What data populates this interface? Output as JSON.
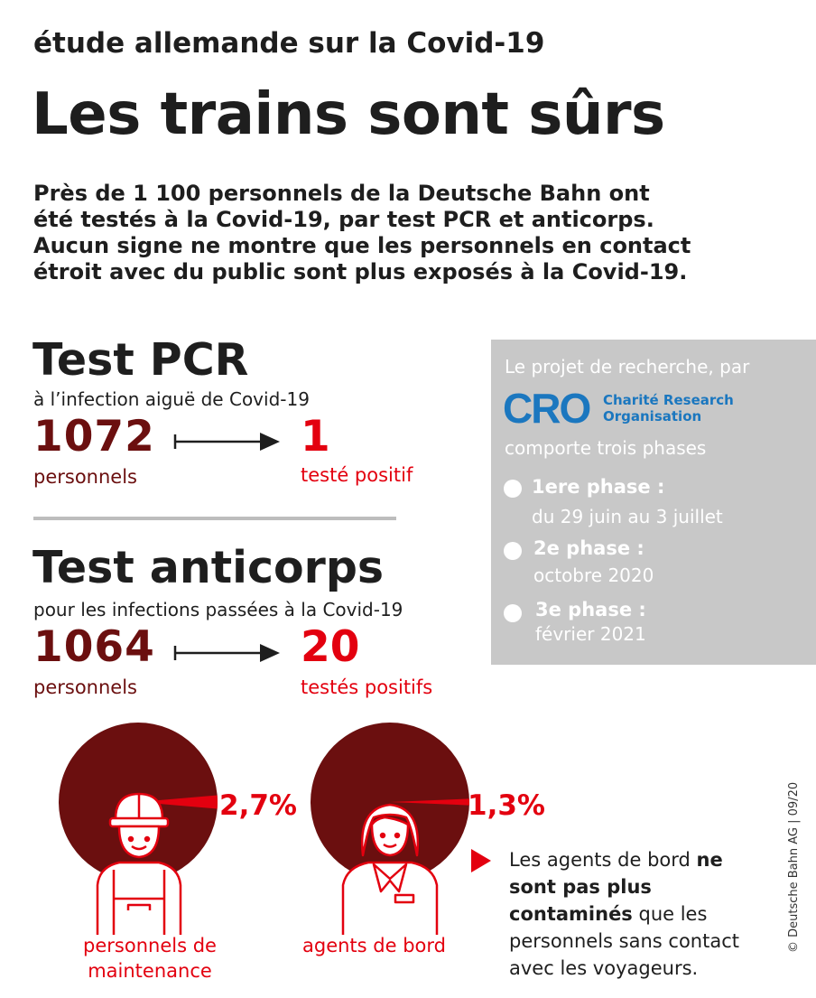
{
  "header": {
    "kicker": "étude allemande sur la Covid-19",
    "title": "Les trains sont sûrs"
  },
  "intro": {
    "lines": [
      "Près de 1 100 personnels de la Deutsche Bahn ont",
      "été testés à la Covid-19, par test PCR et anticorps.",
      "Aucun signe ne montre que les personnels en contact",
      "étroit avec du public sont plus exposés à la Covid-19."
    ]
  },
  "pcr": {
    "title": "Test PCR",
    "subtitle": "à l’infection aiguë de Covid-19",
    "count": "1072",
    "count_label": "personnels",
    "positive": "1",
    "positive_label": "testé positif"
  },
  "antibody": {
    "title": "Test anticorps",
    "subtitle": "pour les infections passées à la Covid-19",
    "count": "1064",
    "count_label": "personnels",
    "positive": "20",
    "positive_label": "testés positifs"
  },
  "research": {
    "intro": "Le projet de recherche, par",
    "logo_text": "CRO",
    "org_line1": "Charité Research",
    "org_line2": "Organisation",
    "phases_intro": "comporte trois phases",
    "phases": [
      {
        "name": "1ere phase :",
        "date": "du 29 juin au 3 juillet"
      },
      {
        "name": "2e phase :",
        "date": "octobre 2020"
      },
      {
        "name": "3e phase :",
        "date": "février 2021"
      }
    ]
  },
  "chart_data": {
    "type": "pie",
    "charts": [
      {
        "label": "personnels de maintenance",
        "percent_label": "2,7%",
        "value": 2.7
      },
      {
        "label": "agents de bord",
        "percent_label": "1,3%",
        "value": 1.3
      }
    ]
  },
  "captions": {
    "maintenance_line1": "personnels de",
    "maintenance_line2": "maintenance",
    "board": "agents de bord"
  },
  "note": {
    "line1_pre": "Les agents de bord ",
    "line1_bold": "ne",
    "line2_bold": "sont pas plus",
    "line3_bold": "contaminés",
    "line3_post": " que les",
    "line4": "personnels sans contact",
    "line5": "avec les voyageurs."
  },
  "credit": "© Deutsche Bahn AG | 09/20",
  "colors": {
    "dark_red": "#6b0f0f",
    "red": "#e3000f",
    "panel_gray": "#c8c8c8",
    "cro_blue": "#1b77bf"
  }
}
